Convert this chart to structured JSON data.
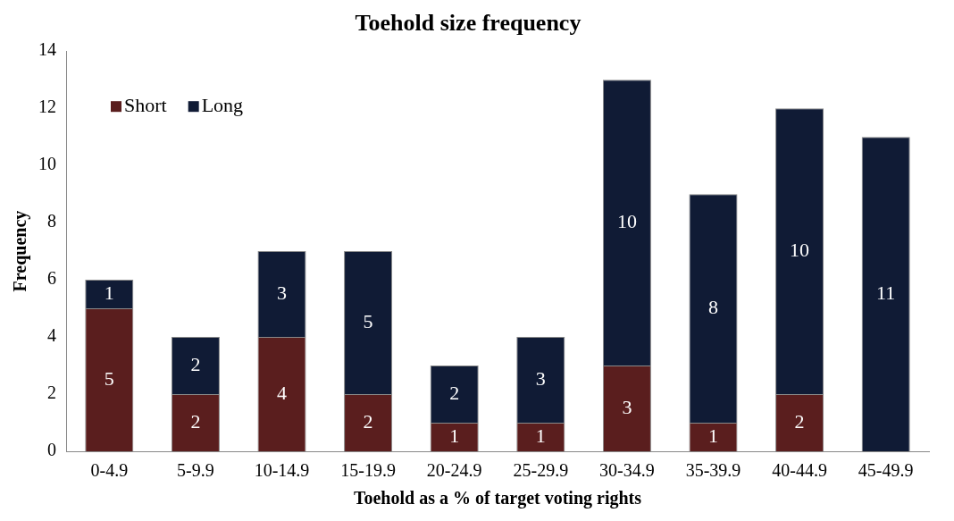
{
  "chart_data": {
    "type": "bar",
    "title": "Toehold size frequency",
    "xlabel": "Toehold as a % of target voting rights",
    "ylabel": "Frequency",
    "categories": [
      "0-4.9",
      "5-9.9",
      "10-14.9",
      "15-19.9",
      "20-24.9",
      "25-29.9",
      "30-34.9",
      "35-39.9",
      "40-44.9",
      "45-49.9"
    ],
    "series": [
      {
        "name": "Short",
        "color": "#5a1e1e",
        "values": [
          5,
          2,
          4,
          2,
          1,
          1,
          3,
          1,
          2,
          null
        ]
      },
      {
        "name": "Long",
        "color": "#101b35",
        "values": [
          1,
          2,
          3,
          5,
          2,
          3,
          10,
          8,
          10,
          11
        ]
      }
    ],
    "stacked": true,
    "ylim": [
      0,
      14
    ],
    "yticks": [
      0,
      2,
      4,
      6,
      8,
      10,
      12,
      14
    ],
    "grid": false,
    "legend": "top left",
    "data_labels": true
  }
}
